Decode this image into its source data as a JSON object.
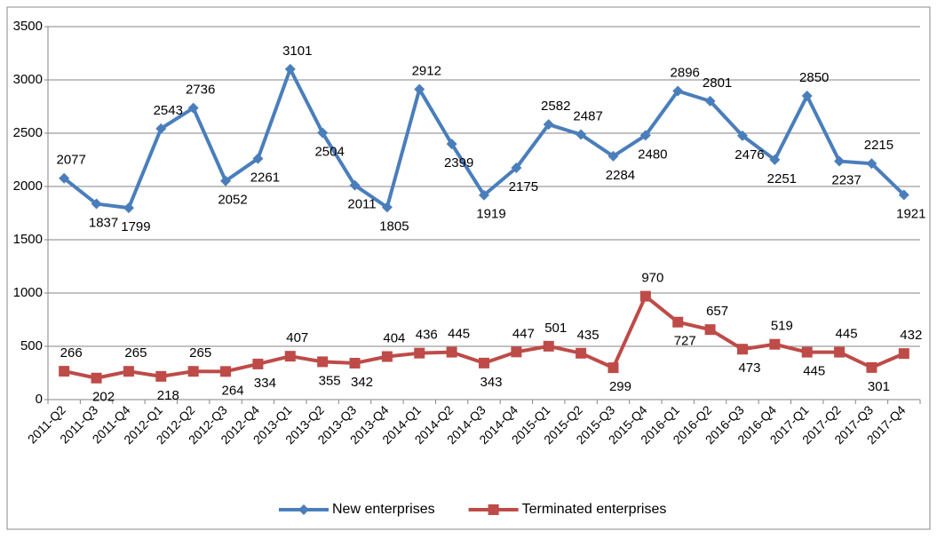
{
  "chart_data": {
    "type": "line",
    "categories": [
      "2011-Q2",
      "2011-Q3",
      "2011-Q4",
      "2012-Q1",
      "2012-Q2",
      "2012-Q3",
      "2012-Q4",
      "2013-Q1",
      "2013-Q2",
      "2013-Q3",
      "2013-Q4",
      "2014-Q1",
      "2014-Q2",
      "2014-Q3",
      "2014-Q4",
      "2015-Q1",
      "2015-Q2",
      "2015-Q3",
      "2015-Q4",
      "2016-Q1",
      "2016-Q2",
      "2016-Q3",
      "2016-Q4",
      "2017-Q1",
      "2017-Q2",
      "2017-Q3",
      "2017-Q4"
    ],
    "series": [
      {
        "name": "New enterprises",
        "color": "#4a7ebb",
        "marker": "diamond",
        "values": [
          2077,
          1837,
          1799,
          2543,
          2736,
          2052,
          2261,
          3101,
          2504,
          2011,
          1805,
          2912,
          2399,
          1919,
          2175,
          2582,
          2487,
          2284,
          2480,
          2896,
          2801,
          2476,
          2251,
          2850,
          2237,
          2215,
          1921
        ]
      },
      {
        "name": "Terminated enterprises",
        "color": "#be4b48",
        "marker": "square",
        "values": [
          266,
          202,
          265,
          218,
          265,
          264,
          334,
          407,
          355,
          342,
          404,
          436,
          445,
          343,
          447,
          501,
          435,
          299,
          970,
          727,
          657,
          473,
          519,
          445,
          445,
          301,
          432
        ]
      }
    ],
    "ylim": [
      0,
      3500
    ],
    "yticks": [
      0,
      500,
      1000,
      1500,
      2000,
      2500,
      3000,
      3500
    ],
    "grid": true,
    "legend": "bottom"
  }
}
